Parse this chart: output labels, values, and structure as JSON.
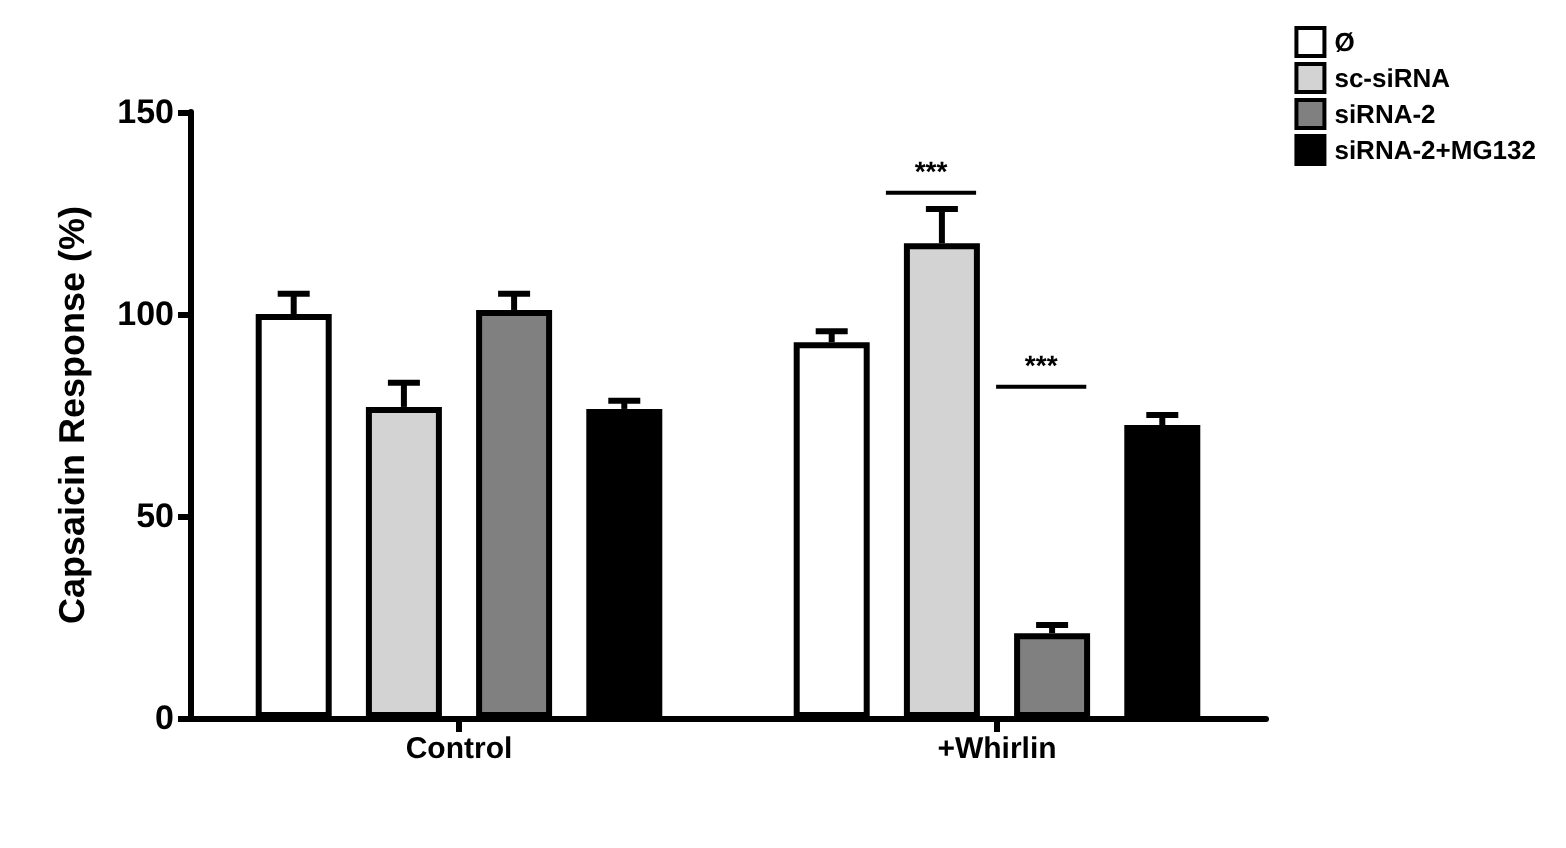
{
  "chart_data": {
    "type": "bar",
    "ylabel": "Capsaicin Response (%)",
    "categories": [
      "Control",
      "+Whirlin"
    ],
    "series": [
      {
        "name": "Ø",
        "color": "#ffffff",
        "values": [
          100,
          93
        ],
        "errors": [
          [
            100,
            105
          ],
          [
            93,
            95.7
          ]
        ]
      },
      {
        "name": "sc-siRNA",
        "color": "#d3d3d3",
        "values": [
          77,
          117.5
        ],
        "errors": [
          [
            77,
            83
          ],
          [
            117.5,
            126
          ]
        ]
      },
      {
        "name": "siRNA-2",
        "color": "#808080",
        "values": [
          101,
          21
        ],
        "errors": [
          [
            101,
            105
          ],
          [
            21,
            23
          ]
        ]
      },
      {
        "name": "siRNA-2+MG132",
        "color": "#000000",
        "values": [
          76.5,
          72.5
        ],
        "errors": [
          [
            76.5,
            78.5
          ],
          [
            72.5,
            75
          ]
        ]
      }
    ],
    "ylim": [
      0,
      150
    ],
    "yticks": [
      0,
      50,
      100,
      150
    ],
    "grid": false,
    "legend": "top right",
    "annotations": [
      "***",
      "***"
    ]
  }
}
